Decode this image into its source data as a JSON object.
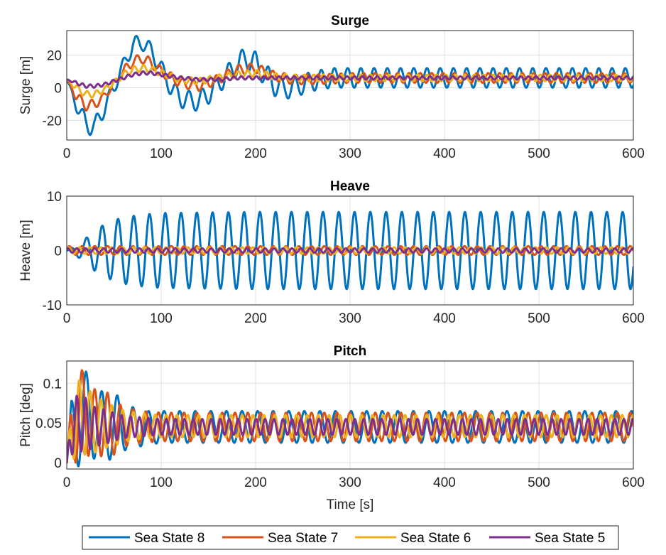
{
  "legend": {
    "placement": "bottom",
    "entries": [
      "Sea State 8",
      "Sea State 7",
      "Sea State 6",
      "Sea State 5"
    ]
  },
  "colors": {
    "Sea State 8": "#0072BD",
    "Sea State 7": "#D95319",
    "Sea State 6": "#EDB120",
    "Sea State 5": "#7E2F8E"
  },
  "chart_data": [
    {
      "type": "line",
      "title": "Surge",
      "xlabel": "",
      "ylabel": "Surge [m]",
      "xlim": [
        0,
        600
      ],
      "ylim": [
        -32,
        35
      ],
      "xticks": [
        0,
        100,
        200,
        300,
        400,
        500,
        600
      ],
      "yticks": [
        -20,
        0,
        20
      ],
      "grid": true,
      "series": [
        {
          "name": "Sea State 8",
          "period": 14,
          "x": [
            0,
            10,
            20,
            30,
            40,
            50,
            60,
            70,
            80,
            90,
            100,
            110,
            120,
            130,
            140,
            150,
            160,
            170,
            180,
            190,
            200,
            210,
            220,
            230,
            240,
            250,
            260,
            270,
            280,
            290,
            300,
            350,
            400,
            450,
            500,
            550,
            600
          ],
          "center": [
            5,
            -10,
            -22,
            -24,
            -12,
            0,
            14,
            26,
            28,
            22,
            12,
            0,
            -6,
            -8,
            -8,
            -4,
            2,
            8,
            14,
            18,
            15,
            8,
            2,
            -1,
            0,
            2,
            4,
            5,
            6,
            6,
            6,
            6,
            6,
            6,
            6,
            6,
            6
          ],
          "amp": [
            0,
            4,
            6,
            6,
            5,
            4,
            4,
            5,
            5,
            5,
            5,
            5,
            6,
            6,
            6,
            6,
            6,
            6,
            7,
            7,
            7,
            7,
            7,
            6,
            6,
            6,
            6,
            6,
            6,
            6,
            6,
            6,
            6,
            6,
            6,
            6,
            6
          ]
        },
        {
          "name": "Sea State 7",
          "period": 12,
          "x": [
            0,
            10,
            20,
            30,
            40,
            50,
            60,
            70,
            80,
            90,
            100,
            120,
            140,
            160,
            180,
            200,
            220,
            240,
            260,
            300,
            350,
            400,
            450,
            500,
            550,
            600
          ],
          "center": [
            5,
            -5,
            -11,
            -10,
            -5,
            2,
            10,
            16,
            18,
            15,
            10,
            3,
            1,
            5,
            11,
            12,
            7,
            5,
            5,
            6,
            6,
            6,
            6,
            6,
            6,
            6
          ],
          "amp": [
            0,
            3,
            3,
            3,
            2,
            2,
            3,
            3,
            3,
            3,
            3,
            3,
            3,
            3,
            3,
            3,
            3,
            3,
            3,
            3,
            3,
            3,
            3,
            3,
            3,
            3
          ]
        },
        {
          "name": "Sea State 6",
          "period": 10,
          "x": [
            0,
            10,
            20,
            30,
            40,
            50,
            60,
            70,
            80,
            90,
            100,
            120,
            140,
            160,
            180,
            200,
            220,
            240,
            260,
            300,
            350,
            400,
            450,
            500,
            550,
            600
          ],
          "center": [
            5,
            0,
            -4,
            -4,
            -1,
            3,
            8,
            11,
            12,
            11,
            9,
            5,
            4,
            6,
            8,
            9,
            7,
            6,
            6,
            6,
            6,
            6,
            6,
            6,
            6,
            6
          ],
          "amp": [
            0,
            2,
            2,
            2,
            1.5,
            1.5,
            2,
            2,
            2,
            2,
            2,
            2,
            2,
            2,
            2,
            2,
            2,
            2,
            2,
            2,
            2,
            2,
            2,
            2,
            2,
            2
          ]
        },
        {
          "name": "Sea State 5",
          "period": 8,
          "x": [
            0,
            10,
            20,
            30,
            40,
            50,
            60,
            70,
            80,
            90,
            100,
            120,
            140,
            160,
            180,
            200,
            220,
            240,
            260,
            300,
            350,
            400,
            450,
            500,
            550,
            600
          ],
          "center": [
            5,
            3,
            1,
            1,
            2,
            4,
            6,
            8,
            9,
            9,
            8,
            6,
            5,
            5,
            6,
            6,
            6,
            6,
            6,
            6,
            6,
            6,
            6,
            6,
            6,
            6
          ],
          "amp": [
            0,
            1,
            1,
            1,
            1,
            1,
            1,
            1,
            1,
            1,
            1,
            1,
            1,
            1,
            1,
            1,
            1,
            1,
            1,
            1,
            1,
            1,
            1,
            1,
            1,
            1
          ]
        }
      ]
    },
    {
      "type": "line",
      "title": "Heave",
      "xlabel": "",
      "ylabel": "Heave [m]",
      "xlim": [
        0,
        600
      ],
      "ylim": [
        -10,
        10
      ],
      "xticks": [
        0,
        100,
        200,
        300,
        400,
        500,
        600
      ],
      "yticks": [
        -10,
        0,
        10
      ],
      "grid": true,
      "series": [
        {
          "name": "Sea State 8",
          "period": 16.7,
          "x": [
            0,
            10,
            20,
            30,
            40,
            50,
            60,
            80,
            100,
            150,
            200,
            600
          ],
          "center": [
            0,
            0,
            0,
            0,
            0,
            0,
            0,
            0,
            0,
            0,
            0,
            0
          ],
          "amp": [
            0,
            1,
            2.2,
            3.8,
            4.8,
            5.6,
            6.1,
            6.6,
            6.9,
            7.0,
            7.1,
            7.1
          ]
        },
        {
          "name": "Sea State 7",
          "period": 13.5,
          "x": [
            0,
            600
          ],
          "center": [
            0,
            0
          ],
          "amp": [
            0.8,
            0.8
          ]
        },
        {
          "name": "Sea State 6",
          "period": 11.5,
          "x": [
            0,
            600
          ],
          "center": [
            0,
            0
          ],
          "amp": [
            0.6,
            0.6
          ]
        },
        {
          "name": "Sea State 5",
          "period": 9.5,
          "x": [
            0,
            600
          ],
          "center": [
            0,
            0
          ],
          "amp": [
            0.4,
            0.4
          ]
        }
      ]
    },
    {
      "type": "line",
      "title": "Pitch",
      "xlabel": "Time [s]",
      "ylabel": "Pitch [deg]",
      "xlim": [
        0,
        600
      ],
      "ylim": [
        -0.008,
        0.128
      ],
      "xticks": [
        0,
        100,
        200,
        300,
        400,
        500,
        600
      ],
      "yticks": [
        0,
        0.05,
        0.1
      ],
      "grid": true,
      "series": [
        {
          "name": "Sea State 8",
          "period": 16.5,
          "x": [
            0,
            5,
            12,
            18,
            25,
            30,
            40,
            50,
            60,
            80,
            100,
            150,
            200,
            250,
            300,
            400,
            500,
            600
          ],
          "center": [
            0,
            0.04,
            0.06,
            0.06,
            0.055,
            0.05,
            0.048,
            0.045,
            0.045,
            0.043,
            0.045,
            0.045,
            0.045,
            0.045,
            0.045,
            0.045,
            0.045,
            0.045
          ],
          "amp": [
            0,
            0.04,
            0.065,
            0.06,
            0.05,
            0.045,
            0.04,
            0.045,
            0.03,
            0.022,
            0.02,
            0.02,
            0.02,
            0.02,
            0.02,
            0.02,
            0.02,
            0.02
          ]
        },
        {
          "name": "Sea State 7",
          "period": 13.5,
          "x": [
            0,
            5,
            12,
            18,
            25,
            30,
            40,
            50,
            60,
            80,
            100,
            150,
            200,
            250,
            300,
            400,
            500,
            600
          ],
          "center": [
            0,
            0.04,
            0.06,
            0.06,
            0.055,
            0.05,
            0.05,
            0.045,
            0.045,
            0.045,
            0.045,
            0.045,
            0.045,
            0.045,
            0.045,
            0.045,
            0.045,
            0.045
          ],
          "amp": [
            0,
            0.04,
            0.06,
            0.055,
            0.045,
            0.042,
            0.042,
            0.035,
            0.025,
            0.02,
            0.018,
            0.018,
            0.018,
            0.018,
            0.018,
            0.018,
            0.018,
            0.018
          ]
        },
        {
          "name": "Sea State 6",
          "period": 11.5,
          "x": [
            0,
            5,
            12,
            18,
            25,
            30,
            40,
            50,
            60,
            80,
            100,
            150,
            200,
            300,
            400,
            500,
            600
          ],
          "center": [
            0,
            0.04,
            0.055,
            0.055,
            0.05,
            0.048,
            0.048,
            0.046,
            0.046,
            0.046,
            0.046,
            0.046,
            0.046,
            0.046,
            0.046,
            0.046,
            0.046
          ],
          "amp": [
            0,
            0.035,
            0.05,
            0.045,
            0.04,
            0.035,
            0.03,
            0.025,
            0.02,
            0.016,
            0.014,
            0.014,
            0.014,
            0.014,
            0.014,
            0.014,
            0.014
          ]
        },
        {
          "name": "Sea State 5",
          "period": 9.5,
          "x": [
            0,
            5,
            12,
            18,
            25,
            30,
            40,
            50,
            60,
            80,
            100,
            150,
            200,
            300,
            400,
            500,
            600
          ],
          "center": [
            0,
            0.04,
            0.05,
            0.05,
            0.045,
            0.045,
            0.045,
            0.045,
            0.045,
            0.045,
            0.045,
            0.045,
            0.045,
            0.045,
            0.045,
            0.045,
            0.045
          ],
          "amp": [
            0,
            0.03,
            0.038,
            0.035,
            0.028,
            0.025,
            0.022,
            0.018,
            0.014,
            0.012,
            0.01,
            0.01,
            0.01,
            0.01,
            0.01,
            0.01,
            0.01
          ]
        }
      ]
    }
  ]
}
